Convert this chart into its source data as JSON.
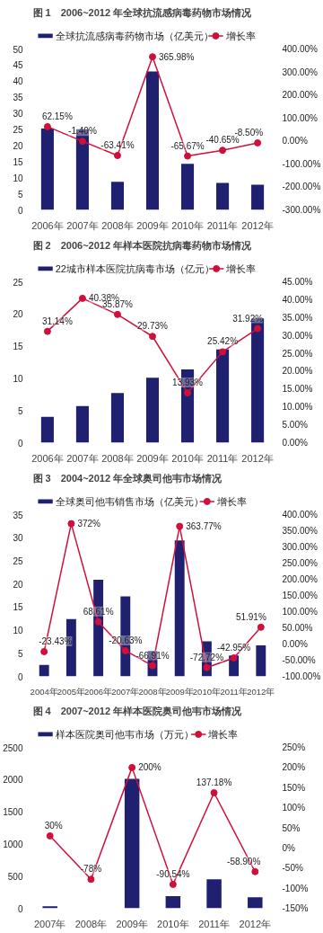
{
  "chart_data": [
    {
      "type": "bar",
      "title": "图 1　2006~2012 年全球抗流感病毒药物市场情况",
      "categories": [
        "2006年",
        "2007年",
        "2008年",
        "2009年",
        "2010年",
        "2011年",
        "2012年"
      ],
      "legend": "top",
      "marker": "circle",
      "ylim": [
        0,
        50
      ],
      "yticks": [
        0,
        5,
        10,
        15,
        20,
        25,
        30,
        35,
        40,
        45,
        50
      ],
      "y2lim": [
        -300,
        400
      ],
      "y2ticks": [
        {
          "value": -300,
          "label": "-300.00%"
        },
        {
          "value": -200,
          "label": "-200.00%"
        },
        {
          "value": -100,
          "label": "-100.00%"
        },
        {
          "value": 0,
          "label": "0.00%"
        },
        {
          "value": 100,
          "label": "100.00%"
        },
        {
          "value": 200,
          "label": "200.00%"
        },
        {
          "value": 300,
          "label": "300.00%"
        },
        {
          "value": 400,
          "label": "400.00%"
        }
      ],
      "series": [
        {
          "name": "全球抗流感病毒药物市场（亿美元）",
          "type": "bar",
          "color": "#1f2070",
          "values": [
            25.3,
            25.1,
            8.7,
            43.0,
            14.3,
            8.4,
            7.8
          ]
        },
        {
          "name": "增长率",
          "type": "line",
          "axis": "y2",
          "color": "#d0103a",
          "values": [
            62.15,
            -1.4,
            -63.41,
            365.98,
            -65.67,
            -40.65,
            -8.5
          ],
          "value_labels": [
            "62.15%",
            "-1.40%",
            "-63.41%",
            "365.98%",
            "-65.67%",
            "-40.65%",
            "-8.50%"
          ]
        }
      ]
    },
    {
      "type": "bar",
      "title": "图 2　2006~2012 年样本医院抗病毒药物市场情况",
      "categories": [
        "2006年",
        "2007年",
        "2008年",
        "2009年",
        "2010年",
        "2011年",
        "2012年"
      ],
      "legend": "top",
      "marker": "circle",
      "ylim": [
        0,
        25
      ],
      "yticks": [
        0,
        5,
        10,
        15,
        20,
        25
      ],
      "y2lim": [
        0,
        45
      ],
      "y2ticks": [
        {
          "value": 0,
          "label": "0.00%"
        },
        {
          "value": 5,
          "label": "5.00%"
        },
        {
          "value": 10,
          "label": "10.00%"
        },
        {
          "value": 15,
          "label": "15.00%"
        },
        {
          "value": 20,
          "label": "20.00%"
        },
        {
          "value": 25,
          "label": "25.00%"
        },
        {
          "value": 30,
          "label": "30.00%"
        },
        {
          "value": 35,
          "label": "35.00%"
        },
        {
          "value": 40,
          "label": "40.00%"
        },
        {
          "value": 45,
          "label": "45.00%"
        }
      ],
      "series": [
        {
          "name": "22城市样本医院抗病毒市场（亿元）",
          "type": "bar",
          "color": "#1f2070",
          "values": [
            4.0,
            5.7,
            7.7,
            10.1,
            11.4,
            14.5,
            19.3
          ]
        },
        {
          "name": "增长率",
          "type": "line",
          "axis": "y2",
          "color": "#d0103a",
          "values": [
            31.14,
            40.38,
            35.87,
            29.73,
            13.93,
            25.42,
            31.92
          ],
          "value_labels": [
            "31.14%",
            "40.38%",
            "35.87%",
            "29.73%",
            "13.93%",
            "25.42%",
            "31.92%"
          ]
        }
      ]
    },
    {
      "type": "bar",
      "title": "图 3　2004~2012 年全球奥司他韦市场情况",
      "categories": [
        "2004年",
        "2005年",
        "2006年",
        "2007年",
        "2008年",
        "2009年",
        "2010年",
        "2011年",
        "2012年"
      ],
      "legend": "top",
      "marker": "circle",
      "ylim": [
        0,
        35
      ],
      "yticks": [
        0,
        5,
        10,
        15,
        20,
        25,
        30,
        35
      ],
      "y2lim": [
        -100,
        400
      ],
      "y2ticks": [
        {
          "value": -100,
          "label": "-100.00%"
        },
        {
          "value": -50,
          "label": "-50.00%"
        },
        {
          "value": 0,
          "label": "0.00%"
        },
        {
          "value": 50,
          "label": "50.00%"
        },
        {
          "value": 100,
          "label": "100.00%"
        },
        {
          "value": 150,
          "label": "150.00%"
        },
        {
          "value": 200,
          "label": "200.00%"
        },
        {
          "value": 250,
          "label": "250.00%"
        },
        {
          "value": 300,
          "label": "300.00%"
        },
        {
          "value": 350,
          "label": "350.00%"
        },
        {
          "value": 400,
          "label": "400.00%"
        }
      ],
      "series": [
        {
          "name": "全球奥司他韦销售市场（亿美元）",
          "type": "bar",
          "color": "#1f2070",
          "values": [
            2.5,
            12.4,
            20.9,
            17.3,
            5.5,
            29.4,
            7.6,
            4.5,
            6.7
          ]
        },
        {
          "name": "增长率",
          "type": "line",
          "axis": "y2",
          "color": "#d0103a",
          "values": [
            -23.43,
            372,
            68.61,
            -20.63,
            -66.91,
            363.77,
            -72.72,
            -42.95,
            51.91
          ],
          "value_labels": [
            "-23.43%",
            "372%",
            "68.61%",
            "-20.63%",
            "-66.91%",
            "363.77%",
            "-72.72%",
            "-42.95%",
            "51.91%"
          ]
        }
      ]
    },
    {
      "type": "bar",
      "title": "图 4　2007~2012 年样本医院奥司他韦市场情况",
      "categories": [
        "2007年",
        "2008年",
        "2009年",
        "2010年",
        "2011年",
        "2012年"
      ],
      "legend": "top",
      "marker": "circle",
      "ylim": [
        0,
        2500
      ],
      "yticks": [
        0,
        500,
        1000,
        1500,
        2000,
        2500
      ],
      "y2lim": [
        -150,
        250
      ],
      "y2ticks": [
        {
          "value": -150,
          "label": "-150%"
        },
        {
          "value": -100,
          "label": "-100%"
        },
        {
          "value": -50,
          "label": "-50%"
        },
        {
          "value": 0,
          "label": "0%"
        },
        {
          "value": 50,
          "label": "50%"
        },
        {
          "value": 100,
          "label": "100%"
        },
        {
          "value": 150,
          "label": "150%"
        },
        {
          "value": 200,
          "label": "200%"
        },
        {
          "value": 250,
          "label": "250%"
        }
      ],
      "series": [
        {
          "name": "样本医院奥司他韦市场（万元）",
          "type": "bar",
          "color": "#1f2070",
          "values": [
            30,
            null,
            2010,
            190,
            450,
            170
          ]
        },
        {
          "name": "增长率",
          "type": "line",
          "axis": "y2",
          "color": "#d0103a",
          "values": [
            30,
            -78,
            200,
            -90.54,
            137.18,
            -58.9
          ],
          "value_labels": [
            "30%",
            "-78%",
            "200%",
            "-90.54%",
            "137.18%",
            "-58.90%"
          ]
        }
      ]
    }
  ]
}
